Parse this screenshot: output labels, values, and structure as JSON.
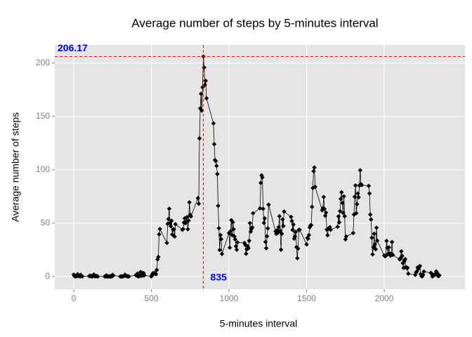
{
  "chart_data": {
    "type": "line",
    "title": "Average number of steps by 5-minutes interval",
    "x_label": "5-minutes interval",
    "y_label": "Average number of steps",
    "xlim": [
      -122,
      2520
    ],
    "ylim": [
      -12,
      217
    ],
    "xticks": [
      0,
      500,
      1000,
      1500,
      2000
    ],
    "yticks": [
      0,
      50,
      100,
      150,
      200
    ],
    "grid": true,
    "color": "#000000",
    "hline": {
      "value": 206.17,
      "color": "#ff0000",
      "label": "206.17"
    },
    "vline": {
      "value": 835,
      "color": "#ff0000",
      "label": "835"
    },
    "annotation_color": "#0000ff",
    "x": [
      0,
      5,
      10,
      15,
      20,
      25,
      30,
      35,
      40,
      45,
      50,
      55,
      100,
      105,
      110,
      115,
      120,
      125,
      130,
      135,
      140,
      145,
      150,
      155,
      200,
      205,
      210,
      215,
      220,
      225,
      230,
      235,
      240,
      245,
      250,
      255,
      300,
      305,
      310,
      315,
      320,
      325,
      330,
      335,
      340,
      345,
      350,
      355,
      400,
      405,
      410,
      415,
      420,
      425,
      430,
      435,
      440,
      445,
      450,
      455,
      500,
      505,
      510,
      515,
      520,
      525,
      530,
      535,
      540,
      545,
      550,
      555,
      600,
      605,
      610,
      615,
      620,
      625,
      630,
      635,
      640,
      645,
      650,
      655,
      700,
      705,
      710,
      715,
      720,
      725,
      730,
      735,
      740,
      745,
      750,
      755,
      800,
      805,
      810,
      815,
      820,
      825,
      830,
      835,
      840,
      845,
      850,
      855,
      900,
      905,
      910,
      915,
      920,
      925,
      930,
      935,
      940,
      945,
      950,
      955,
      1000,
      1005,
      1010,
      1015,
      1020,
      1025,
      1030,
      1035,
      1040,
      1045,
      1050,
      1055,
      1100,
      1105,
      1110,
      1115,
      1120,
      1125,
      1130,
      1135,
      1140,
      1145,
      1150,
      1155,
      1200,
      1205,
      1210,
      1215,
      1220,
      1225,
      1230,
      1235,
      1240,
      1245,
      1250,
      1255,
      1300,
      1305,
      1310,
      1315,
      1320,
      1325,
      1330,
      1335,
      1340,
      1345,
      1350,
      1355,
      1400,
      1405,
      1410,
      1415,
      1420,
      1425,
      1430,
      1435,
      1440,
      1445,
      1450,
      1455,
      1500,
      1505,
      1510,
      1515,
      1520,
      1525,
      1530,
      1535,
      1540,
      1545,
      1550,
      1555,
      1600,
      1605,
      1610,
      1615,
      1620,
      1625,
      1630,
      1635,
      1640,
      1645,
      1650,
      1655,
      1700,
      1705,
      1710,
      1715,
      1720,
      1725,
      1730,
      1735,
      1740,
      1745,
      1750,
      1755,
      1800,
      1805,
      1810,
      1815,
      1820,
      1825,
      1830,
      1835,
      1840,
      1845,
      1850,
      1855,
      1900,
      1905,
      1910,
      1915,
      1920,
      1925,
      1930,
      1935,
      1940,
      1945,
      1950,
      1955,
      2000,
      2005,
      2010,
      2015,
      2020,
      2025,
      2030,
      2035,
      2040,
      2045,
      2050,
      2055,
      2100,
      2105,
      2110,
      2115,
      2120,
      2125,
      2130,
      2135,
      2140,
      2145,
      2150,
      2155,
      2200,
      2205,
      2210,
      2215,
      2220,
      2225,
      2230,
      2235,
      2240,
      2245,
      2250,
      2255,
      2300,
      2305,
      2310,
      2315,
      2320,
      2325,
      2330,
      2335,
      2340,
      2345,
      2350,
      2355
    ],
    "values": [
      1.7,
      0.3,
      0.1,
      0.2,
      0.1,
      2.1,
      0.5,
      0.9,
      0,
      1.5,
      0.3,
      0.1,
      0.3,
      0.7,
      0.2,
      0.3,
      0,
      1.1,
      1.8,
      0.2,
      0.2,
      0.4,
      0.3,
      0,
      0,
      0,
      1.1,
      0,
      0,
      0.1,
      0,
      0.2,
      0,
      0,
      1.5,
      0.9,
      0,
      0,
      0,
      0,
      0.2,
      0.6,
      1.6,
      0.6,
      0.5,
      0.1,
      0,
      0,
      1.2,
      0.9,
      2.6,
      0,
      0.3,
      0.4,
      4.1,
      0.7,
      3.5,
      0.8,
      3.1,
      1.1,
      0,
      1.6,
      3,
      2.2,
      3.3,
      3,
      2.1,
      6.1,
      16,
      18.3,
      39.5,
      44.5,
      31.5,
      49.3,
      53.8,
      63.5,
      50,
      47.1,
      52.2,
      39.3,
      44,
      44.2,
      37.4,
      49,
      43.8,
      44.4,
      50.5,
      54.5,
      49.9,
      51,
      55.7,
      44.3,
      52.3,
      69.5,
      57.8,
      56.2,
      73.4,
      68.2,
      129.4,
      157.5,
      171.2,
      155.4,
      177.3,
      206.17,
      195.9,
      179.6,
      183.4,
      167,
      143.5,
      124,
      109.1,
      108.1,
      103.7,
      96,
      66.2,
      45.2,
      24.8,
      38.8,
      35,
      21.1,
      40.6,
      27,
      42.4,
      52.7,
      38.9,
      50.8,
      44.3,
      37.4,
      34.7,
      28.3,
      25.1,
      31.9,
      31.4,
      29.7,
      21.3,
      25.5,
      28.4,
      26.5,
      33.4,
      50,
      42,
      44.6,
      46,
      59.2,
      63.9,
      87.7,
      94.8,
      92.8,
      63.4,
      50.2,
      54.5,
      32.4,
      26.5,
      37.7,
      45.1,
      67.3,
      42.3,
      39.9,
      43.3,
      41,
      46.2,
      56.4,
      42.8,
      25.1,
      40,
      53.5,
      47.3,
      60.8,
      55.8,
      52,
      43.6,
      48.7,
      35.5,
      37.5,
      41.8,
      27.5,
      17.1,
      26.1,
      43.6,
      43.8,
      30,
      36.1,
      35.5,
      38.8,
      46,
      47.8,
      48.1,
      65.3,
      82.9,
      98.7,
      102.1,
      84,
      62.1,
      64.1,
      74.5,
      63.2,
      56.9,
      59.8,
      43.9,
      38.6,
      44.7,
      45.5,
      46.2,
      43.7,
      46.6,
      56.3,
      50.7,
      61.2,
      72.7,
      78.9,
      68.9,
      59.7,
      75.1,
      56.5,
      34.8,
      37.5,
      40.7,
      58,
      74.7,
      85.3,
      59.3,
      67.8,
      77.7,
      74.2,
      85.3,
      99.5,
      86.6,
      85.6,
      84.9,
      77.8,
      58,
      53.4,
      36.3,
      20.7,
      27.4,
      40,
      30.2,
      25.5,
      45.7,
      33.5,
      19.6,
      19,
      19.3,
      33.3,
      26.8,
      21.2,
      27.3,
      21.3,
      19.5,
      21.3,
      32.3,
      20.2,
      15.9,
      17.2,
      23.5,
      19.2,
      12.5,
      8,
      14.7,
      16.3,
      8.7,
      7.8,
      8.1,
      2.6,
      1.5,
      3.7,
      4.8,
      8.5,
      7.1,
      8.7,
      9.8,
      2.2,
      0.3,
      0.1,
      1.6,
      4.6,
      3.3,
      2.8,
      0,
      0.8,
      1,
      1.6,
      2.6,
      4.7,
      3.3,
      0.6,
      0.2,
      1.1
    ]
  }
}
